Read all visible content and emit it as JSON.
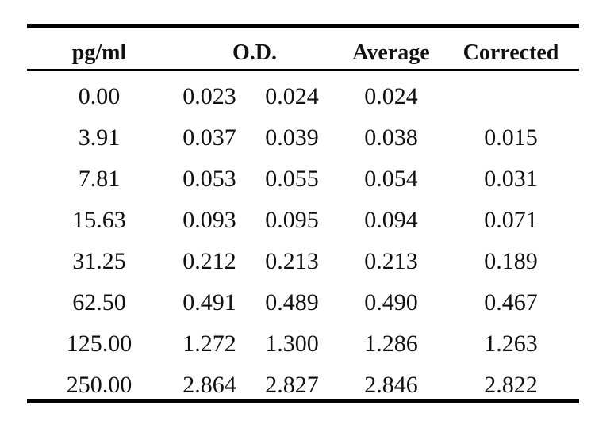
{
  "table": {
    "headers": {
      "concentration": "pg/ml",
      "od": "O.D.",
      "average": "Average",
      "corrected": "Corrected"
    },
    "rows": [
      {
        "conc": "0.00",
        "od1": "0.023",
        "od2": "0.024",
        "avg": "0.024",
        "corr": ""
      },
      {
        "conc": "3.91",
        "od1": "0.037",
        "od2": "0.039",
        "avg": "0.038",
        "corr": "0.015"
      },
      {
        "conc": "7.81",
        "od1": "0.053",
        "od2": "0.055",
        "avg": "0.054",
        "corr": "0.031"
      },
      {
        "conc": "15.63",
        "od1": "0.093",
        "od2": "0.095",
        "avg": "0.094",
        "corr": "0.071"
      },
      {
        "conc": "31.25",
        "od1": "0.212",
        "od2": "0.213",
        "avg": "0.213",
        "corr": "0.189"
      },
      {
        "conc": "62.50",
        "od1": "0.491",
        "od2": "0.489",
        "avg": "0.490",
        "corr": "0.467"
      },
      {
        "conc": "125.00",
        "od1": "1.272",
        "od2": "1.300",
        "avg": "1.286",
        "corr": "1.263"
      },
      {
        "conc": "250.00",
        "od1": "2.864",
        "od2": "2.827",
        "avg": "2.846",
        "corr": "2.822"
      }
    ]
  }
}
